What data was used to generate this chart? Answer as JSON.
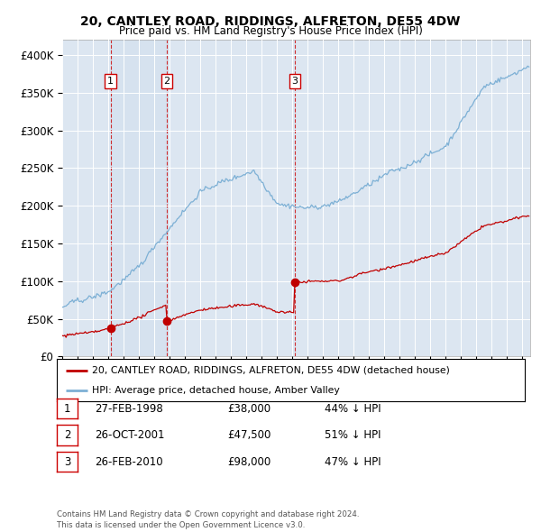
{
  "title": "20, CANTLEY ROAD, RIDDINGS, ALFRETON, DE55 4DW",
  "subtitle": "Price paid vs. HM Land Registry's House Price Index (HPI)",
  "background_color": "#ffffff",
  "plot_bg_color": "#dce6f1",
  "grid_color": "#ffffff",
  "ylim": [
    0,
    420000
  ],
  "yticks": [
    0,
    50000,
    100000,
    150000,
    200000,
    250000,
    300000,
    350000,
    400000
  ],
  "ytick_labels": [
    "£0",
    "£50K",
    "£100K",
    "£150K",
    "£200K",
    "£250K",
    "£300K",
    "£350K",
    "£400K"
  ],
  "hpi_color": "#7db0d5",
  "price_color": "#c00000",
  "transactions": [
    {
      "date": 1998.15,
      "price": 38000,
      "label": "1"
    },
    {
      "date": 2001.82,
      "price": 47500,
      "label": "2"
    },
    {
      "date": 2010.15,
      "price": 98000,
      "label": "3"
    }
  ],
  "transaction_table": [
    {
      "num": "1",
      "date": "27-FEB-1998",
      "price": "£38,000",
      "note": "44% ↓ HPI"
    },
    {
      "num": "2",
      "date": "26-OCT-2001",
      "price": "£47,500",
      "note": "51% ↓ HPI"
    },
    {
      "num": "3",
      "date": "26-FEB-2010",
      "price": "£98,000",
      "note": "47% ↓ HPI"
    }
  ],
  "legend_line1": "20, CANTLEY ROAD, RIDDINGS, ALFRETON, DE55 4DW (detached house)",
  "legend_line2": "HPI: Average price, detached house, Amber Valley",
  "footer": "Contains HM Land Registry data © Crown copyright and database right 2024.\nThis data is licensed under the Open Government Licence v3.0.",
  "xmin": 1995.0,
  "xmax": 2025.5
}
